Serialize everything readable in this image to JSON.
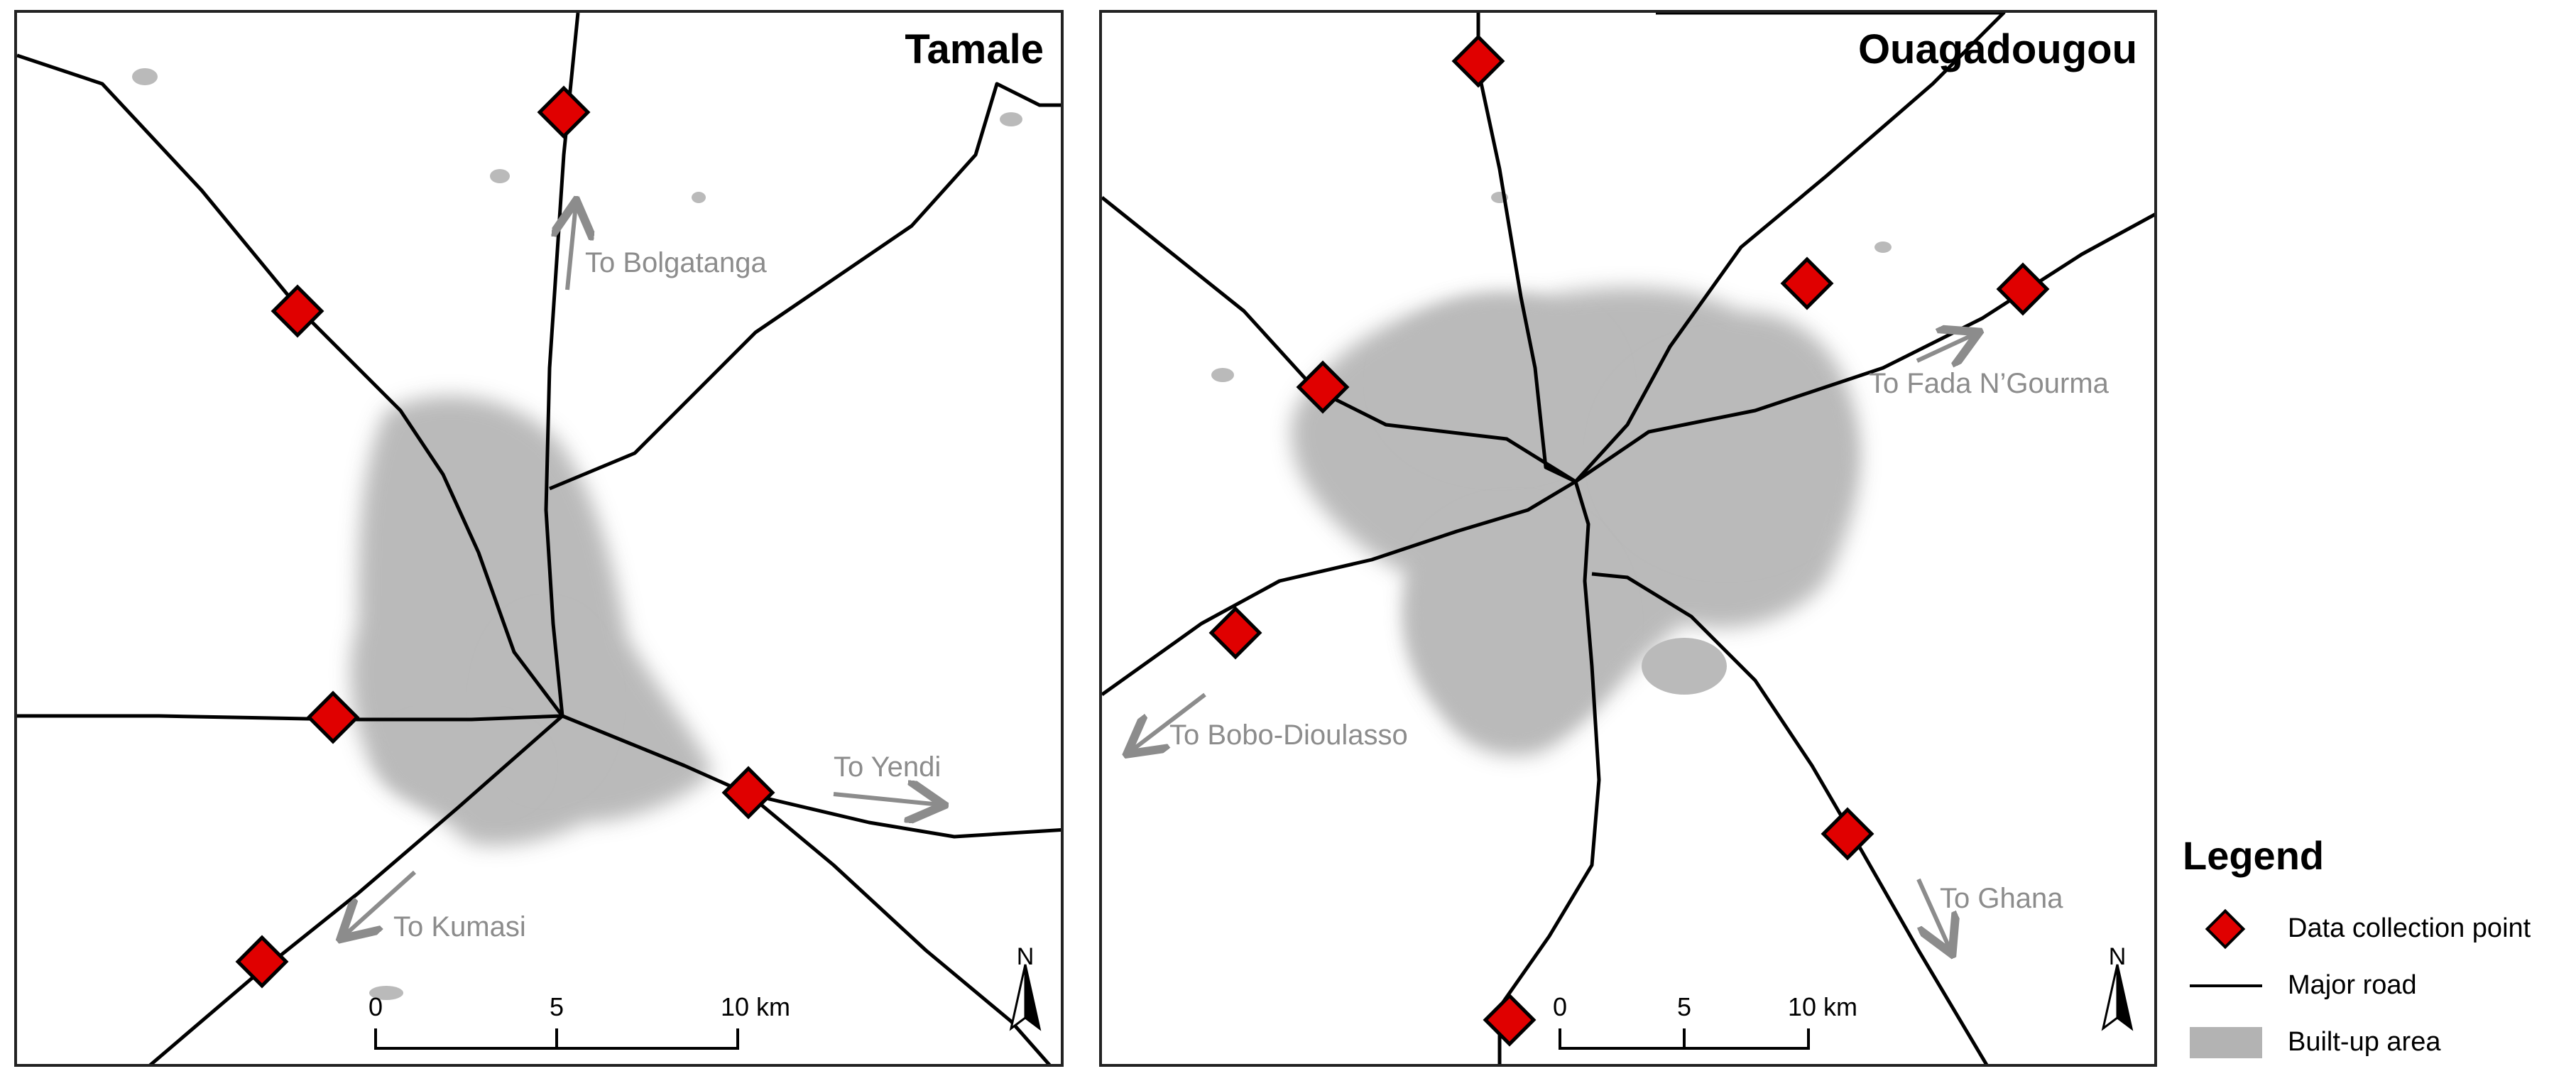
{
  "panels": {
    "tamale": {
      "title": "Tamale",
      "directions": [
        "To Bolgatanga",
        "To Yendi",
        "To Kumasi"
      ],
      "scale_ticks": [
        "0",
        "5",
        "10 km"
      ],
      "north_label": "N"
    },
    "ouagadougou": {
      "title": "Ouagadougou",
      "directions": [
        "To Fada N’Gourma",
        "To Bobo-Dioulasso",
        "To Ghana"
      ],
      "scale_ticks": [
        "0",
        "5",
        "10 km"
      ],
      "north_label": "N"
    }
  },
  "legend": {
    "title": "Legend",
    "items": [
      {
        "label": "Data collection point",
        "symbol": "red-diamond"
      },
      {
        "label": "Major road",
        "symbol": "black-line"
      },
      {
        "label": "Built-up area",
        "symbol": "gray-fill"
      }
    ]
  },
  "colors": {
    "collection_point": "#e00000",
    "road": "#000000",
    "built_up": "#b3b3b3",
    "direction_text": "#8c8c8c"
  }
}
